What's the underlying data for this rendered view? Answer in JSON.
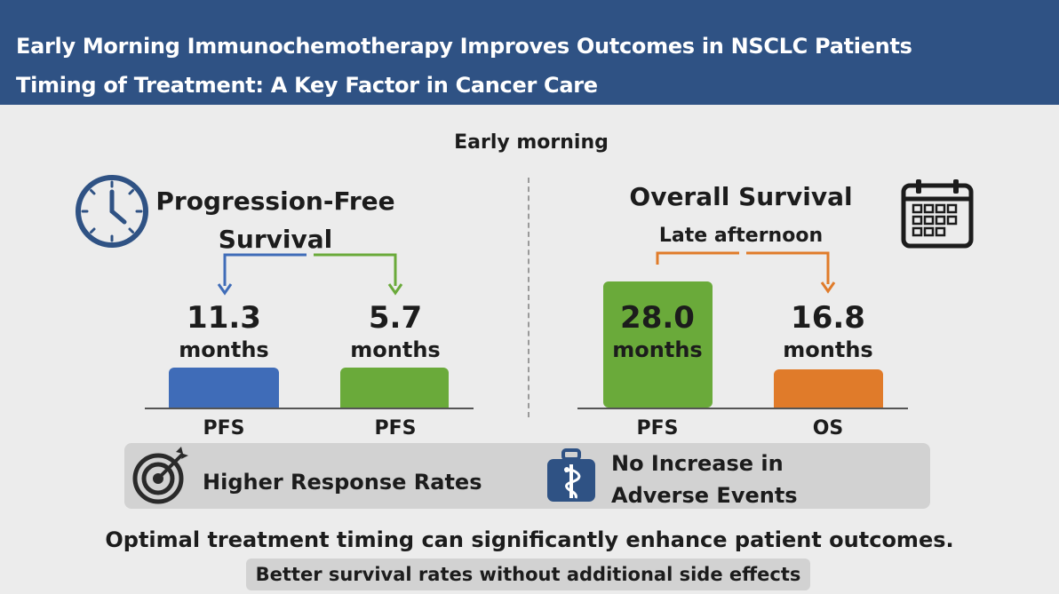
{
  "header": {
    "line1": "Early Morning Immunochemotherapy Improves Outcomes in NSCLC Patients",
    "line2": "Timing of Treatment: A Key Factor in Cancer Care"
  },
  "subtitle": "Early morning",
  "left_panel": {
    "title_line1": "Progression-Free",
    "title_line2": "Survival",
    "icon": "clock-icon",
    "bars": [
      {
        "value": "11.3",
        "unit": "months",
        "category": "PFS",
        "color": "#3f6cb8"
      },
      {
        "value": "5.7",
        "unit": "months",
        "category": "PFS",
        "color": "#6aaa3a"
      }
    ]
  },
  "right_panel": {
    "title": "Overall Survival",
    "subtitle": "Late afternoon",
    "icon": "calendar-icon",
    "bars": [
      {
        "value": "28.0",
        "unit": "months",
        "category": "PFS",
        "color": "#6aaa3a"
      },
      {
        "value": "16.8",
        "unit": "months",
        "category": "OS",
        "color": "#e07b2a"
      }
    ]
  },
  "features": [
    {
      "label": "Higher Response Rates",
      "icon": "target-icon"
    },
    {
      "label_line1": "No Increase in",
      "label_line2": "Adverse Events",
      "icon": "medical-kit-icon"
    }
  ],
  "conclusion": "Optimal treatment timing can significantly enhance patient outcomes.",
  "note": "Better survival rates without additional side effects",
  "colors": {
    "header": "#2f5284",
    "blue": "#3f6cb8",
    "green": "#6aaa3a",
    "orange": "#e07b2a"
  }
}
